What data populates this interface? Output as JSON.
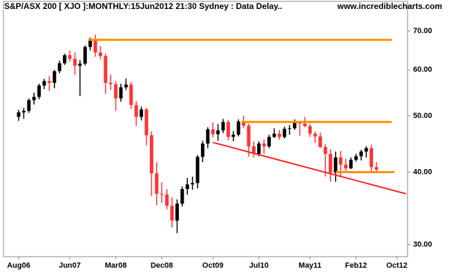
{
  "chart_data": {
    "type": "candlestick",
    "title": "S&P/ASX 200 [ XJO ]:MONTHLY:15Jun2012 21:30 Sydney : Data Delay..",
    "subtitle": "www.incrediblecharts.com",
    "categories": [
      "Aug06",
      null,
      null,
      null,
      null,
      null,
      null,
      null,
      null,
      null,
      "Jun07",
      null,
      null,
      null,
      null,
      null,
      null,
      null,
      null,
      "Mar08",
      null,
      null,
      null,
      null,
      null,
      null,
      null,
      null,
      "Dec08",
      null,
      null,
      null,
      null,
      null,
      null,
      null,
      null,
      null,
      "Oct09",
      null,
      null,
      null,
      null,
      null,
      null,
      null,
      null,
      "Jul10",
      null,
      null,
      null,
      null,
      null,
      null,
      null,
      null,
      null,
      "May11",
      null,
      null,
      null,
      null,
      null,
      null,
      null,
      null,
      "Feb12",
      null,
      null,
      null,
      null,
      null,
      null,
      null,
      "Oct12"
    ],
    "open": [
      49.8,
      50.7,
      51.0,
      53.2,
      53.9,
      56.4,
      57.4,
      57.0,
      59.7,
      61.6,
      63.6,
      62.7,
      61.0,
      61.5,
      65.7,
      67.8,
      64.3,
      63.4,
      57.0,
      56.7,
      53.6,
      56.0,
      56.6,
      52.2,
      49.8,
      51.3,
      46.3,
      39.8,
      36.7,
      36.6,
      35.0,
      33.0,
      35.3,
      37.4,
      38.1,
      38.3,
      42.5,
      44.8,
      47.4,
      46.5,
      47.2,
      48.8,
      46.0,
      46.4,
      48.9,
      48.1,
      44.3,
      43.0,
      44.8,
      44.3,
      46.0,
      46.6,
      46.0,
      47.5,
      47.6,
      48.7,
      48.5,
      48.0,
      46.6,
      46.1,
      44.2,
      43.0,
      39.9,
      42.4,
      41.2,
      40.6,
      42.0,
      42.6,
      43.4,
      44.0,
      40.8,
      null,
      null,
      null,
      null
    ],
    "high": [
      51.2,
      51.6,
      53.6,
      54.8,
      56.8,
      57.9,
      58.6,
      60.0,
      62.2,
      64.0,
      64.8,
      64.3,
      62.4,
      66.1,
      68.2,
      69.0,
      66.0,
      64.0,
      58.9,
      57.4,
      56.8,
      58.0,
      57.2,
      53.0,
      51.9,
      51.6,
      47.0,
      41.6,
      38.4,
      37.4,
      36.2,
      35.9,
      37.8,
      39.1,
      39.3,
      42.8,
      45.3,
      47.8,
      48.7,
      48.4,
      49.4,
      49.2,
      47.1,
      49.3,
      50.0,
      48.5,
      45.2,
      45.2,
      45.5,
      46.4,
      47.6,
      47.3,
      47.9,
      48.2,
      49.3,
      49.0,
      49.8,
      48.4,
      47.0,
      46.8,
      44.7,
      43.8,
      43.4,
      43.5,
      42.2,
      42.4,
      43.0,
      43.7,
      44.3,
      44.6,
      41.6,
      null,
      null,
      null,
      null
    ],
    "low": [
      49.0,
      49.4,
      50.6,
      52.3,
      53.4,
      55.6,
      55.2,
      55.8,
      59.2,
      61.2,
      62.0,
      58.8,
      54.1,
      61.1,
      64.8,
      63.2,
      62.6,
      54.6,
      55.4,
      51.0,
      52.9,
      55.4,
      51.4,
      48.0,
      49.1,
      44.5,
      36.4,
      35.1,
      35.4,
      34.5,
      32.1,
      31.4,
      34.9,
      36.6,
      37.3,
      37.5,
      41.6,
      44.0,
      45.9,
      45.3,
      46.7,
      45.4,
      45.2,
      46.1,
      47.6,
      42.5,
      42.4,
      42.6,
      43.0,
      44.0,
      45.8,
      45.5,
      45.7,
      46.4,
      47.3,
      46.2,
      47.8,
      46.0,
      44.9,
      44.0,
      39.3,
      38.5,
      38.5,
      39.3,
      40.1,
      40.5,
      41.7,
      41.9,
      42.4,
      40.0,
      40.1,
      null,
      null,
      null,
      null
    ],
    "close": [
      50.7,
      51.0,
      53.2,
      53.9,
      56.4,
      57.4,
      57.0,
      59.7,
      61.6,
      63.6,
      62.7,
      61.0,
      61.5,
      65.7,
      67.8,
      64.3,
      63.4,
      57.0,
      56.7,
      53.6,
      56.0,
      56.6,
      52.2,
      49.8,
      51.3,
      46.3,
      39.8,
      36.7,
      36.6,
      35.0,
      33.0,
      35.3,
      37.4,
      38.1,
      38.3,
      42.5,
      44.8,
      47.4,
      46.5,
      47.2,
      48.8,
      46.0,
      46.4,
      48.9,
      48.1,
      44.3,
      43.0,
      44.8,
      44.3,
      46.0,
      46.6,
      46.0,
      47.5,
      47.6,
      48.7,
      48.5,
      48.0,
      46.6,
      46.1,
      44.2,
      43.0,
      39.9,
      42.4,
      41.2,
      40.6,
      42.0,
      42.6,
      43.4,
      44.0,
      40.8,
      40.4,
      null,
      null,
      null,
      null
    ],
    "up_color": "#000000",
    "down_color": "#ff3333",
    "log_scale": true,
    "ylim": [
      28.6,
      78.1
    ],
    "yticks": [
      {
        "value": 30,
        "label": "30.00"
      },
      {
        "value": 40,
        "label": "40.00"
      },
      {
        "value": 50,
        "label": "50.00"
      },
      {
        "value": 60,
        "label": "60.00"
      },
      {
        "value": 70,
        "label": "70.00"
      }
    ],
    "levels": [
      {
        "value": 67.6,
        "x": [
          13.6,
          73
        ],
        "color": "#ff8c00"
      },
      {
        "value": 48.8,
        "x": [
          43.6,
          73
        ],
        "color": "#ff8c00"
      },
      {
        "value": 40.0,
        "x": [
          62,
          73.5
        ],
        "color": "#ff8c00"
      }
    ],
    "trendline": {
      "x": [
        38,
        75.8
      ],
      "values": [
        45.0,
        36.7
      ],
      "color": "#ff2020"
    }
  }
}
